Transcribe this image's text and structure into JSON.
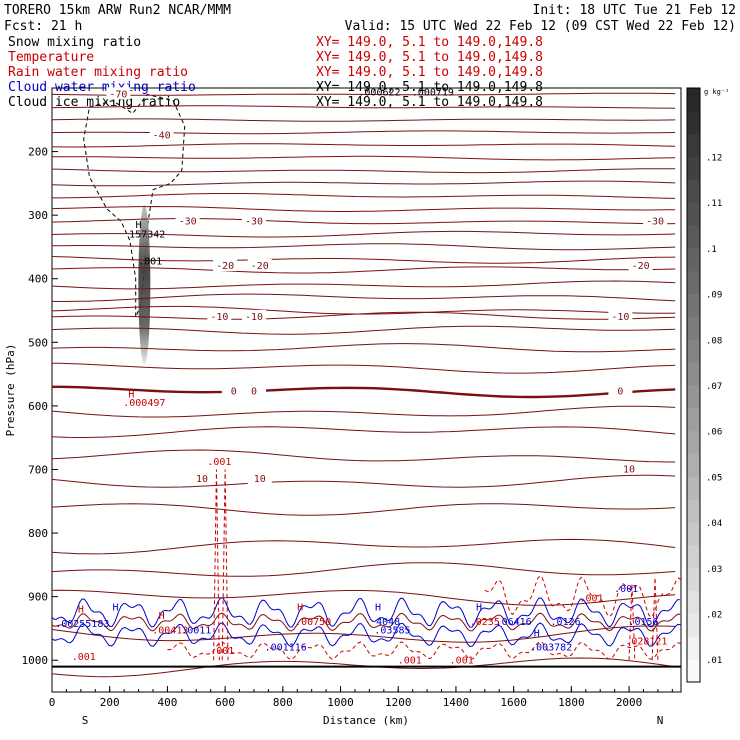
{
  "header": {
    "title": "TORERO  15km ARW   Run2    NCAR/MMM",
    "init": "Init: 18 UTC Tue 21 Feb 12",
    "fcst": "Fcst:    21 h",
    "valid": "Valid: 15 UTC Wed 22 Feb 12 (09 CST Wed 22 Feb 12)"
  },
  "legend": [
    {
      "name": "Snow mixing ratio",
      "info": "XY= 149.0,  5.1 to 149.0,149.8",
      "name_color": "#000000",
      "info_color": "#cc0000"
    },
    {
      "name": "Temperature",
      "info": "XY= 149.0,  5.1 to 149.0,149.8",
      "name_color": "#cc0000",
      "info_color": "#cc0000"
    },
    {
      "name": "Rain water mixing ratio",
      "info": "XY= 149.0,  5.1 to 149.0,149.8",
      "name_color": "#cc0000",
      "info_color": "#cc0000"
    },
    {
      "name": "Cloud water mixing ratio",
      "info": "XY= 149.0,  5.1 to 149.0,149.8",
      "name_color": "#0000cc",
      "info_color": "#000000"
    },
    {
      "name": "Cloud ice mixing ratio",
      "info": "XY= 149.0,  5.1 to 149.0,149.8",
      "name_color": "#000000",
      "info_color": "#000000"
    }
  ],
  "chart_data": {
    "type": "cross-section contour",
    "xlabel": "Distance (km)",
    "ylabel": "Pressure (hPa)",
    "xlim": [
      0,
      2180
    ],
    "ylim": [
      1050,
      100
    ],
    "x_ticks": [
      0,
      200,
      400,
      600,
      800,
      1000,
      1200,
      1400,
      1600,
      1800,
      2000
    ],
    "y_ticks": [
      200,
      300,
      400,
      500,
      600,
      700,
      800,
      900,
      1000
    ],
    "x_end_labels": [
      "S",
      "N"
    ],
    "colorbar": {
      "unit": "g kg⁻¹",
      "ticks": [
        ".01",
        ".02",
        ".03",
        ".04",
        ".05",
        ".06",
        ".07",
        ".08",
        ".09",
        ".1",
        ".11",
        ".12"
      ],
      "min": 0.005,
      "max": 0.135
    },
    "temperature_isotherms": [
      {
        "label": "-70",
        "pressure": 110
      },
      {
        "label": "-40",
        "pressure": 190
      },
      {
        "label": "-30",
        "pressure": 310
      },
      {
        "label": "-20",
        "pressure": 385
      },
      {
        "label": "-10",
        "pressure": 460
      },
      {
        "label": "0",
        "pressure": 577,
        "bold": true
      },
      {
        "label": "10",
        "pressure": 720
      },
      {
        "label": "",
        "pressure": 820
      }
    ],
    "temperature_labels": [
      {
        "text": "-70",
        "x": 230,
        "p": 110
      },
      {
        "text": "-40",
        "x": 380,
        "p": 175
      },
      {
        "text": "-30",
        "x": 470,
        "p": 310
      },
      {
        "text": "-30",
        "x": 700,
        "p": 310
      },
      {
        "text": "-30",
        "x": 2090,
        "p": 310
      },
      {
        "text": "-20",
        "x": 600,
        "p": 380
      },
      {
        "text": "-20",
        "x": 720,
        "p": 380
      },
      {
        "text": "-20",
        "x": 2040,
        "p": 380
      },
      {
        "text": "-10",
        "x": 580,
        "p": 460
      },
      {
        "text": "-10",
        "x": 700,
        "p": 460
      },
      {
        "text": "-10",
        "x": 1970,
        "p": 460
      },
      {
        "text": "0",
        "x": 630,
        "p": 577
      },
      {
        "text": "0",
        "x": 700,
        "p": 577
      },
      {
        "text": "0",
        "x": 1970,
        "p": 577
      },
      {
        "text": "10",
        "x": 520,
        "p": 715
      },
      {
        "text": "10",
        "x": 720,
        "p": 715
      },
      {
        "text": "10",
        "x": 2000,
        "p": 700
      }
    ],
    "annotations": [
      {
        "text": "H",
        "x": 300,
        "p": 320,
        "color": "#000000"
      },
      {
        "text": "157342",
        "x": 330,
        "p": 335,
        "color": "#000000"
      },
      {
        "text": ".001",
        "x": 340,
        "p": 378,
        "color": "#000000"
      },
      {
        "text": "H",
        "x": 275,
        "p": 587,
        "color": "#cc0000"
      },
      {
        "text": ".000497",
        "x": 320,
        "p": 600,
        "color": "#cc0000"
      },
      {
        "text": ".000622",
        "x": 1135,
        "p": 112,
        "color": "#000000"
      },
      {
        "text": ".000719",
        "x": 1320,
        "p": 112,
        "color": "#000000"
      },
      {
        "text": ".001",
        "x": 580,
        "p": 693,
        "color": "#cc0000"
      },
      {
        "text": ".001",
        "x": 590,
        "p": 990,
        "color": "#cc0000"
      },
      {
        "text": ".001",
        "x": 1870,
        "p": 908,
        "color": "#cc0000"
      },
      {
        "text": ".001",
        "x": 1990,
        "p": 893,
        "color": "#0000cc"
      },
      {
        "text": ".001",
        "x": 110,
        "p": 1000,
        "color": "#cc0000"
      },
      {
        "text": ".001",
        "x": 1240,
        "p": 1005,
        "color": "#cc0000"
      },
      {
        "text": ".001",
        "x": 1420,
        "p": 1005,
        "color": "#cc0000"
      },
      {
        "text": "H",
        "x": 100,
        "p": 925,
        "color": "#cc0000"
      },
      {
        "text": ".00255183",
        "x": 105,
        "p": 948,
        "color": "#0000cc"
      },
      {
        "text": "H",
        "x": 220,
        "p": 922,
        "color": "#0000cc"
      },
      {
        "text": "H",
        "x": 380,
        "p": 935,
        "color": "#cc0000"
      },
      {
        "text": ".00413",
        "x": 410,
        "p": 958,
        "color": "#cc0000"
      },
      {
        "text": ".0011",
        "x": 500,
        "p": 958,
        "color": "#0000cc"
      },
      {
        "text": "H",
        "x": 860,
        "p": 922,
        "color": "#cc0000"
      },
      {
        "text": ".00750",
        "x": 905,
        "p": 945,
        "color": "#cc0000"
      },
      {
        "text": ".001116",
        "x": 810,
        "p": 985,
        "color": "#0000cc"
      },
      {
        "text": "H",
        "x": 1130,
        "p": 922,
        "color": "#0000cc"
      },
      {
        "text": "4048",
        "x": 1165,
        "p": 945,
        "color": "#0000cc"
      },
      {
        "text": ".03585",
        "x": 1180,
        "p": 958,
        "color": "#0000cc"
      },
      {
        "text": "H",
        "x": 1480,
        "p": 922,
        "color": "#0000cc"
      },
      {
        "text": ".0235",
        "x": 1500,
        "p": 945,
        "color": "#cc0000"
      },
      {
        "text": ".06416",
        "x": 1600,
        "p": 945,
        "color": "#0000cc"
      },
      {
        "text": ".0126",
        "x": 1780,
        "p": 945,
        "color": "#0000cc"
      },
      {
        "text": "H",
        "x": 1680,
        "p": 963,
        "color": "#0000cc"
      },
      {
        "text": ".003782",
        "x": 1730,
        "p": 985,
        "color": "#0000cc"
      },
      {
        "text": ".0156",
        "x": 2050,
        "p": 945,
        "color": "#0000cc"
      },
      {
        "text": ".028121",
        "x": 2060,
        "p": 975,
        "color": "#cc0000"
      }
    ]
  }
}
